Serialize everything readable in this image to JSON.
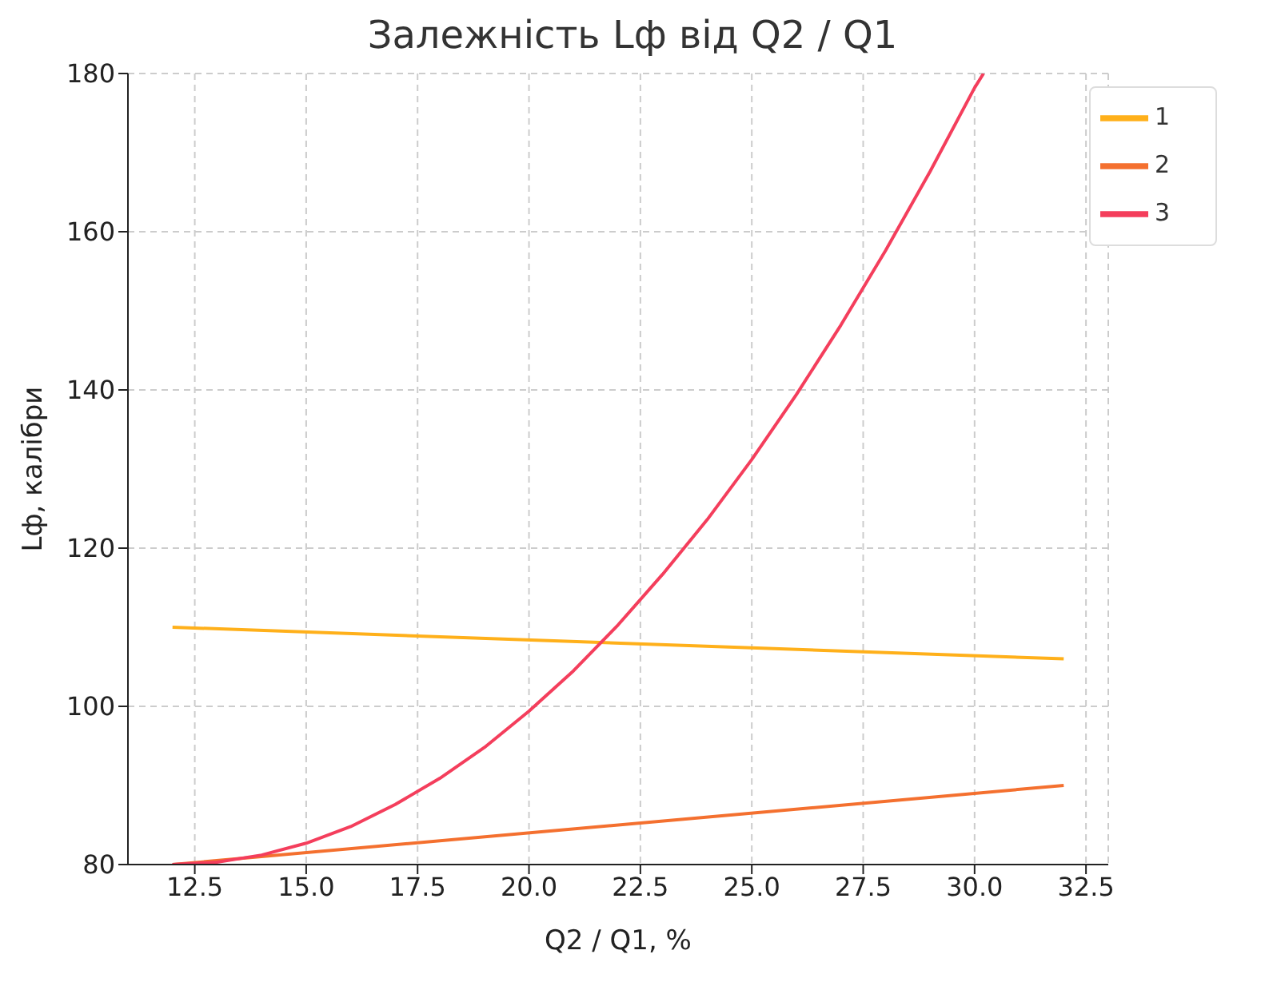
{
  "chart_data": {
    "type": "line",
    "title": "Залежність Lф від Q2 / Q1",
    "xlabel": "Q2 / Q1, %",
    "ylabel": "Lф, калібри",
    "xlim": [
      11,
      33
    ],
    "ylim": [
      80,
      180
    ],
    "xticks": [
      12.5,
      {
        "value": 15,
        "label": "15.0"
      },
      17.5,
      {
        "value": 20,
        "label": "20.0"
      },
      22.5,
      {
        "value": 25,
        "label": "25.0"
      },
      27.5,
      {
        "value": 30,
        "label": "30.0"
      },
      32.5
    ],
    "yticks": [
      80,
      100,
      120,
      140,
      160,
      180
    ],
    "grid": true,
    "legend": "top right",
    "line_style": "solid",
    "series": [
      {
        "name": "1",
        "color": "#ffb01a",
        "x": [
          12,
          32
        ],
        "values": [
          110,
          106
        ]
      },
      {
        "name": "2",
        "color": "#f4702f",
        "x": [
          12,
          32
        ],
        "values": [
          80,
          90
        ]
      },
      {
        "name": "3",
        "color": "#f43e5c",
        "x": [
          12,
          13,
          14,
          15,
          16,
          17,
          18,
          19,
          20,
          21,
          22,
          23,
          24,
          25,
          26,
          27,
          28,
          29,
          30,
          30.2
        ],
        "values": [
          80,
          80.3,
          81.2,
          82.7,
          84.8,
          87.6,
          90.9,
          94.8,
          99.4,
          104.5,
          110.3,
          116.7,
          123.6,
          131.2,
          139.4,
          148.2,
          157.6,
          167.6,
          178.2,
          180
        ]
      }
    ]
  }
}
